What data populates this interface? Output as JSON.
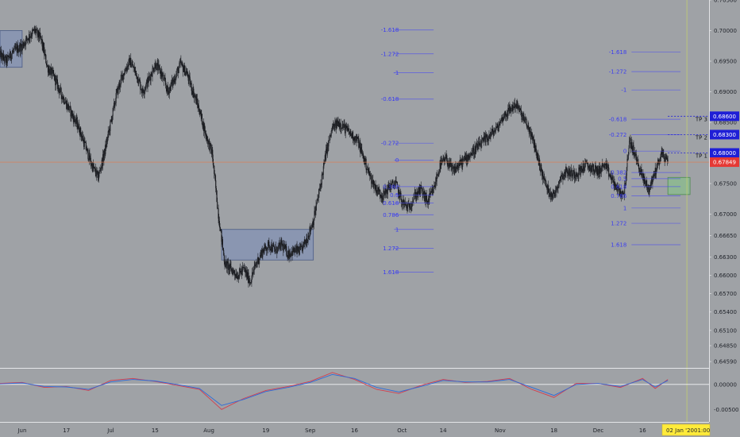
{
  "chart_data": [
    {
      "type": "candlestick",
      "symbol": "",
      "x_start": "2019-05-27",
      "x_end": "2019-12-24",
      "ylim": [
        0.645,
        0.705
      ],
      "y_ticks": [
        0.705,
        0.7,
        0.695,
        0.69,
        0.685,
        0.68,
        0.675,
        0.67,
        0.6665,
        0.663,
        0.66,
        0.657,
        0.654,
        0.651,
        0.6485,
        0.6459
      ],
      "y_tick_labels": [
        "0.70500",
        "0.70000",
        "0.69500",
        "0.69000",
        "0.68500",
        "0.68000",
        "0.67500",
        "0.67000",
        "0.66650",
        "0.66300",
        "0.66000",
        "0.65700",
        "0.65400",
        "0.65100",
        "0.64850",
        "0.64590"
      ],
      "x_labels": [
        {
          "date": "2019-06-03",
          "label": "Jun"
        },
        {
          "date": "2019-06-17",
          "label": "17"
        },
        {
          "date": "2019-07-01",
          "label": "Jul"
        },
        {
          "date": "2019-07-15",
          "label": "15"
        },
        {
          "date": "2019-08-01",
          "label": "Aug"
        },
        {
          "date": "2019-08-19",
          "label": "19"
        },
        {
          "date": "2019-09-02",
          "label": "Sep"
        },
        {
          "date": "2019-09-16",
          "label": "16"
        },
        {
          "date": "2019-10-01",
          "label": "Oct"
        },
        {
          "date": "2019-10-14",
          "label": "14"
        },
        {
          "date": "2019-11-01",
          "label": "Nov"
        },
        {
          "date": "2019-11-18",
          "label": "18"
        },
        {
          "date": "2019-12-02",
          "label": "Dec"
        },
        {
          "date": "2019-12-16",
          "label": "16"
        }
      ],
      "close_path": [
        [
          "2019-05-27",
          0.696
        ],
        [
          "2019-05-29",
          0.695
        ],
        [
          "2019-05-31",
          0.6965
        ],
        [
          "2019-06-03",
          0.6975
        ],
        [
          "2019-06-05",
          0.699
        ],
        [
          "2019-06-07",
          0.7
        ],
        [
          "2019-06-09",
          0.6985
        ],
        [
          "2019-06-11",
          0.694
        ],
        [
          "2019-06-13",
          0.6925
        ],
        [
          "2019-06-15",
          0.69
        ],
        [
          "2019-06-17",
          0.688
        ],
        [
          "2019-06-19",
          0.686
        ],
        [
          "2019-06-21",
          0.684
        ],
        [
          "2019-06-23",
          0.681
        ],
        [
          "2019-06-25",
          0.678
        ],
        [
          "2019-06-27",
          0.676
        ],
        [
          "2019-06-29",
          0.68
        ],
        [
          "2019-07-01",
          0.685
        ],
        [
          "2019-07-03",
          0.69
        ],
        [
          "2019-07-05",
          0.693
        ],
        [
          "2019-07-07",
          0.695
        ],
        [
          "2019-07-09",
          0.693
        ],
        [
          "2019-07-11",
          0.69
        ],
        [
          "2019-07-13",
          0.692
        ],
        [
          "2019-07-15",
          0.6945
        ],
        [
          "2019-07-17",
          0.693
        ],
        [
          "2019-07-19",
          0.69
        ],
        [
          "2019-07-21",
          0.692
        ],
        [
          "2019-07-23",
          0.6945
        ],
        [
          "2019-07-25",
          0.693
        ],
        [
          "2019-07-27",
          0.69
        ],
        [
          "2019-07-29",
          0.687
        ],
        [
          "2019-07-31",
          0.683
        ],
        [
          "2019-08-02",
          0.68
        ],
        [
          "2019-08-04",
          0.67
        ],
        [
          "2019-08-06",
          0.662
        ],
        [
          "2019-08-08",
          0.661
        ],
        [
          "2019-08-10",
          0.66
        ],
        [
          "2019-08-12",
          0.661
        ],
        [
          "2019-08-14",
          0.659
        ],
        [
          "2019-08-16",
          0.662
        ],
        [
          "2019-08-18",
          0.664
        ],
        [
          "2019-08-20",
          0.665
        ],
        [
          "2019-08-22",
          0.664
        ],
        [
          "2019-08-24",
          0.665
        ],
        [
          "2019-08-26",
          0.6635
        ],
        [
          "2019-08-28",
          0.664
        ],
        [
          "2019-08-30",
          0.664
        ],
        [
          "2019-09-01",
          0.666
        ],
        [
          "2019-09-03",
          0.669
        ],
        [
          "2019-09-05",
          0.674
        ],
        [
          "2019-09-07",
          0.68
        ],
        [
          "2019-09-09",
          0.684
        ],
        [
          "2019-09-11",
          0.685
        ],
        [
          "2019-09-13",
          0.684
        ],
        [
          "2019-09-15",
          0.683
        ],
        [
          "2019-09-17",
          0.682
        ],
        [
          "2019-09-19",
          0.679
        ],
        [
          "2019-09-21",
          0.676
        ],
        [
          "2019-09-23",
          0.674
        ],
        [
          "2019-09-25",
          0.673
        ],
        [
          "2019-09-27",
          0.6745
        ],
        [
          "2019-09-29",
          0.675
        ],
        [
          "2019-10-01",
          0.672
        ],
        [
          "2019-10-03",
          0.671
        ],
        [
          "2019-10-05",
          0.673
        ],
        [
          "2019-10-07",
          0.674
        ],
        [
          "2019-10-09",
          0.672
        ],
        [
          "2019-10-11",
          0.674
        ],
        [
          "2019-10-13",
          0.678
        ],
        [
          "2019-10-15",
          0.679
        ],
        [
          "2019-10-17",
          0.677
        ],
        [
          "2019-10-19",
          0.678
        ],
        [
          "2019-10-21",
          0.679
        ],
        [
          "2019-10-23",
          0.68
        ],
        [
          "2019-10-25",
          0.681
        ],
        [
          "2019-10-27",
          0.682
        ],
        [
          "2019-10-29",
          0.683
        ],
        [
          "2019-10-31",
          0.684
        ],
        [
          "2019-11-02",
          0.686
        ],
        [
          "2019-11-04",
          0.687
        ],
        [
          "2019-11-06",
          0.688
        ],
        [
          "2019-11-08",
          0.686
        ],
        [
          "2019-11-10",
          0.684
        ],
        [
          "2019-11-12",
          0.681
        ],
        [
          "2019-11-14",
          0.677
        ],
        [
          "2019-11-16",
          0.674
        ],
        [
          "2019-11-18",
          0.673
        ],
        [
          "2019-11-20",
          0.676
        ],
        [
          "2019-11-22",
          0.677
        ],
        [
          "2019-11-24",
          0.6765
        ],
        [
          "2019-11-26",
          0.677
        ],
        [
          "2019-11-28",
          0.678
        ],
        [
          "2019-11-30",
          0.6775
        ],
        [
          "2019-12-02",
          0.677
        ],
        [
          "2019-12-04",
          0.678
        ],
        [
          "2019-12-06",
          0.676
        ],
        [
          "2019-12-08",
          0.674
        ],
        [
          "2019-12-10",
          0.673
        ],
        [
          "2019-12-12",
          0.682
        ],
        [
          "2019-12-14",
          0.679
        ],
        [
          "2019-12-16",
          0.676
        ],
        [
          "2019-12-18",
          0.674
        ],
        [
          "2019-12-20",
          0.677
        ],
        [
          "2019-12-22",
          0.68
        ],
        [
          "2019-12-24",
          0.6785
        ]
      ],
      "price_tags": [
        {
          "value": 0.686,
          "label": "0.68600",
          "color": "#1f1fd6"
        },
        {
          "value": 0.683,
          "label": "0.68300",
          "color": "#1f1fd6"
        },
        {
          "value": 0.68,
          "label": "0.68000",
          "color": "#1f1fd6"
        },
        {
          "value": 0.6785,
          "label": "0.67849",
          "color": "#e53935"
        }
      ],
      "take_profits": [
        {
          "label": "TP 3",
          "value": 0.686
        },
        {
          "label": "TP 2",
          "value": 0.683
        },
        {
          "label": "TP 1",
          "value": 0.68
        }
      ],
      "current_price_line": 0.6785,
      "fib_sets": [
        {
          "date_start": "2019-09-28",
          "date_end": "2019-10-11",
          "label_date": "2019-10-01",
          "levels": [
            {
              "label": "-1.618",
              "value": 0.7001
            },
            {
              "label": "-1.272",
              "value": 0.6962
            },
            {
              "label": "-1",
              "value": 0.6931
            },
            {
              "label": "-0.618",
              "value": 0.6888
            },
            {
              "label": "-0.272",
              "value": 0.6816
            },
            {
              "label": "0",
              "value": 0.6788
            },
            {
              "label": "0.382",
              "value": 0.6745
            },
            {
              "label": "0.5",
              "value": 0.6731
            },
            {
              "label": "0.618",
              "value": 0.6718
            },
            {
              "label": "0.786",
              "value": 0.6699
            },
            {
              "label": "1",
              "value": 0.6675
            },
            {
              "label": "1.272",
              "value": 0.6644
            },
            {
              "label": "1.618",
              "value": 0.6605
            }
          ]
        },
        {
          "date_start": "2019-12-12",
          "date_end": "2019-12-28",
          "label_date": "2019-12-12",
          "levels": [
            {
              "label": "-1.618",
              "value": 0.6965
            },
            {
              "label": "-1.272",
              "value": 0.6933
            },
            {
              "label": "-1",
              "value": 0.6903
            },
            {
              "label": "-0.618",
              "value": 0.6855
            },
            {
              "label": "-0.272",
              "value": 0.683
            },
            {
              "label": "0",
              "value": 0.6803
            },
            {
              "label": "0.382",
              "value": 0.6768
            },
            {
              "label": "0.5",
              "value": 0.6758
            },
            {
              "label": "0.618",
              "value": 0.6745
            },
            {
              "label": "0.786",
              "value": 0.673
            },
            {
              "label": "1",
              "value": 0.671
            },
            {
              "label": "1.272",
              "value": 0.6685
            },
            {
              "label": "1.618",
              "value": 0.665
            }
          ]
        }
      ],
      "zones": [
        {
          "date_start": "2019-05-27",
          "date_end": "2019-06-03",
          "y_low": 0.694,
          "y_high": 0.7
        },
        {
          "date_start": "2019-08-05",
          "date_end": "2019-09-03",
          "y_low": 0.6625,
          "y_high": 0.6675
        },
        {
          "date_start": "2019-12-24",
          "date_end": "2019-12-31",
          "y_low": 0.6732,
          "y_high": 0.676
        }
      ],
      "vertical_line_date": "2019-12-30",
      "crosshair_time": {
        "date": "02 Jan '20",
        "time": "01:00"
      }
    },
    {
      "type": "line",
      "ylim": [
        -0.0075,
        0.003
      ],
      "y_ticks": [
        0.0,
        -0.005
      ],
      "y_tick_labels": [
        "0.00000",
        "-0.00500"
      ],
      "zero_line": 0.0,
      "series": [
        {
          "color": "#d33e4e",
          "points": [
            [
              "2019-05-27",
              0.0002
            ],
            [
              "2019-06-03",
              0.0004
            ],
            [
              "2019-06-10",
              -0.0006
            ],
            [
              "2019-06-17",
              -0.0004
            ],
            [
              "2019-06-24",
              -0.0012
            ],
            [
              "2019-07-01",
              0.0008
            ],
            [
              "2019-07-08",
              0.0012
            ],
            [
              "2019-07-15",
              0.0006
            ],
            [
              "2019-07-22",
              -0.0002
            ],
            [
              "2019-07-29",
              -0.001
            ],
            [
              "2019-08-05",
              -0.005
            ],
            [
              "2019-08-12",
              -0.0028
            ],
            [
              "2019-08-19",
              -0.0012
            ],
            [
              "2019-08-26",
              -0.0004
            ],
            [
              "2019-09-02",
              0.0006
            ],
            [
              "2019-09-09",
              0.0024
            ],
            [
              "2019-09-16",
              0.001
            ],
            [
              "2019-09-23",
              -0.001
            ],
            [
              "2019-09-30",
              -0.0018
            ],
            [
              "2019-10-07",
              -0.0002
            ],
            [
              "2019-10-14",
              0.001
            ],
            [
              "2019-10-21",
              0.0004
            ],
            [
              "2019-10-28",
              0.0006
            ],
            [
              "2019-11-04",
              0.0012
            ],
            [
              "2019-11-11",
              -0.001
            ],
            [
              "2019-11-18",
              -0.0026
            ],
            [
              "2019-11-25",
              0.0002
            ],
            [
              "2019-12-02",
              0.0002
            ],
            [
              "2019-12-09",
              -0.0006
            ],
            [
              "2019-12-16",
              0.0012
            ],
            [
              "2019-12-20",
              -0.0008
            ],
            [
              "2019-12-24",
              0.001
            ]
          ]
        },
        {
          "color": "#2c6bd9",
          "points": [
            [
              "2019-05-27",
              0.0001
            ],
            [
              "2019-06-03",
              0.0003
            ],
            [
              "2019-06-10",
              -0.0004
            ],
            [
              "2019-06-17",
              -0.0005
            ],
            [
              "2019-06-24",
              -0.001
            ],
            [
              "2019-07-01",
              0.0005
            ],
            [
              "2019-07-08",
              0.001
            ],
            [
              "2019-07-15",
              0.0007
            ],
            [
              "2019-07-22",
              0.0
            ],
            [
              "2019-07-29",
              -0.0008
            ],
            [
              "2019-08-05",
              -0.0042
            ],
            [
              "2019-08-12",
              -0.003
            ],
            [
              "2019-08-19",
              -0.0014
            ],
            [
              "2019-08-26",
              -0.0006
            ],
            [
              "2019-09-02",
              0.0004
            ],
            [
              "2019-09-09",
              0.002
            ],
            [
              "2019-09-16",
              0.0012
            ],
            [
              "2019-09-23",
              -0.0006
            ],
            [
              "2019-09-30",
              -0.0015
            ],
            [
              "2019-10-07",
              -0.0004
            ],
            [
              "2019-10-14",
              0.0008
            ],
            [
              "2019-10-21",
              0.0005
            ],
            [
              "2019-10-28",
              0.0005
            ],
            [
              "2019-11-04",
              0.001
            ],
            [
              "2019-11-11",
              -0.0006
            ],
            [
              "2019-11-18",
              -0.0022
            ],
            [
              "2019-11-25",
              0.0
            ],
            [
              "2019-12-02",
              0.0002
            ],
            [
              "2019-12-09",
              -0.0004
            ],
            [
              "2019-12-16",
              0.001
            ],
            [
              "2019-12-20",
              -0.0005
            ],
            [
              "2019-12-24",
              0.0008
            ]
          ]
        }
      ]
    }
  ]
}
